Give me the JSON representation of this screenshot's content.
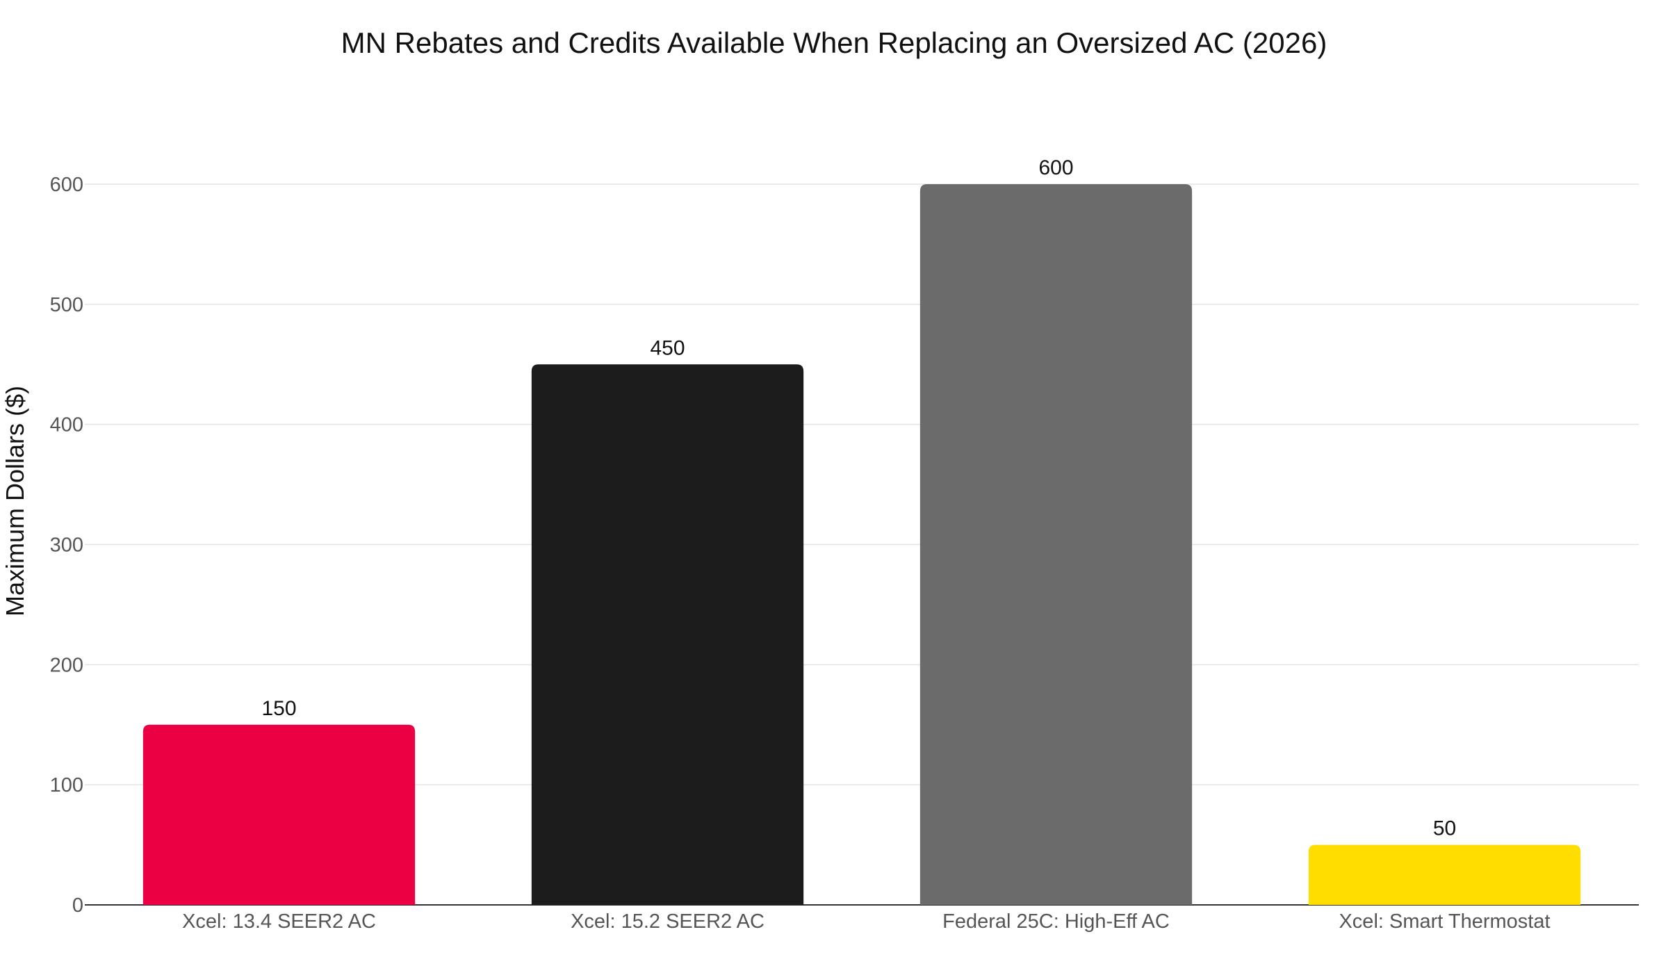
{
  "chart_data": {
    "type": "bar",
    "title": "MN Rebates and Credits Available When Replacing an Oversized AC (2026)",
    "xlabel": "",
    "ylabel": "Maximum Dollars ($)",
    "categories": [
      "Xcel: 13.4 SEER2 AC",
      "Xcel: 15.2 SEER2 AC",
      "Federal 25C: High-Eff AC",
      "Xcel: Smart Thermostat"
    ],
    "values": [
      150,
      450,
      600,
      50
    ],
    "data_labels": [
      "150",
      "450",
      "600",
      "50"
    ],
    "colors": [
      "#ec0044",
      "#1c1c1c",
      "#6b6b6b",
      "#ffdd00"
    ],
    "ylim": [
      0,
      600
    ],
    "yticks": [
      0,
      100,
      200,
      300,
      400,
      500,
      600
    ],
    "grid": true,
    "legend": "none"
  }
}
